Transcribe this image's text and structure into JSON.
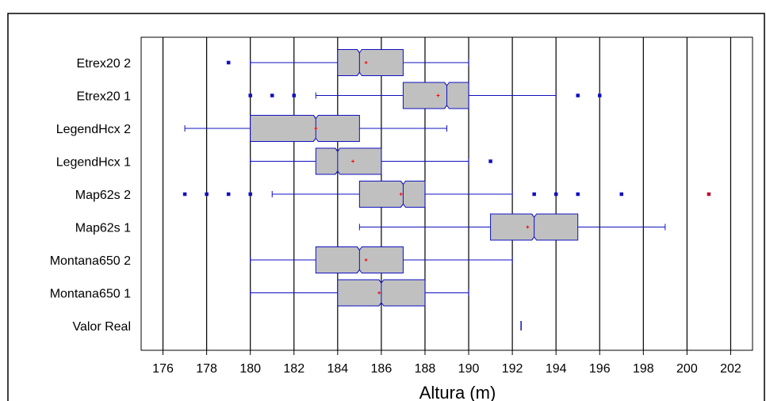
{
  "chart_data": {
    "type": "box",
    "orientation": "horizontal",
    "xlabel": "Altura (m)",
    "xlim": [
      175,
      203
    ],
    "xticks": [
      176,
      178,
      180,
      182,
      184,
      186,
      188,
      190,
      192,
      194,
      196,
      198,
      200,
      202
    ],
    "grid": "vertical",
    "colors": {
      "box_fill": "#c0c0c0",
      "whisker": "#1010c0",
      "mean": "#ff0000",
      "outlier": "#1010c0",
      "far_outlier": "#c01030"
    },
    "categories": [
      "Etrex20 2",
      "Etrex20 1",
      "LegendHcx 2",
      "LegendHcx 1",
      "Map62s 2",
      "Map62s 1",
      "Montana650 2",
      "Montana650 1",
      "Valor Real"
    ],
    "boxes": [
      {
        "name": "Etrex20 2",
        "whisker_low": 180,
        "q1": 184,
        "median": 185,
        "q3": 187,
        "whisker_high": 190,
        "mean": 185.3,
        "outliers": [
          179
        ]
      },
      {
        "name": "Etrex20 1",
        "whisker_low": 183,
        "q1": 187,
        "median": 189,
        "q3": 190,
        "whisker_high": 194,
        "mean": 188.6,
        "outliers": [
          180,
          181,
          182,
          195,
          196
        ]
      },
      {
        "name": "LegendHcx 2",
        "whisker_low": 177,
        "q1": 180,
        "median": 183,
        "q3": 185,
        "whisker_high": 189,
        "mean": 183,
        "outliers": []
      },
      {
        "name": "LegendHcx 1",
        "whisker_low": 180,
        "q1": 183,
        "median": 184,
        "q3": 186,
        "whisker_high": 190,
        "mean": 184.7,
        "outliers": [
          191
        ]
      },
      {
        "name": "Map62s 2",
        "whisker_low": 181,
        "q1": 185,
        "median": 187,
        "q3": 188,
        "whisker_high": 192,
        "mean": 186.9,
        "outliers": [
          177,
          178,
          179,
          180,
          193,
          194,
          195,
          197
        ],
        "far_outliers": [
          201
        ]
      },
      {
        "name": "Map62s 1",
        "whisker_low": 185,
        "q1": 191,
        "median": 193,
        "q3": 195,
        "whisker_high": 199,
        "mean": 192.7,
        "outliers": []
      },
      {
        "name": "Montana650 2",
        "whisker_low": 180,
        "q1": 183,
        "median": 185,
        "q3": 187,
        "whisker_high": 192,
        "mean": 185.3,
        "outliers": []
      },
      {
        "name": "Montana650 1",
        "whisker_low": 180,
        "q1": 184,
        "median": 186,
        "q3": 188,
        "whisker_high": 190,
        "mean": 185.9,
        "outliers": []
      },
      {
        "name": "Valor Real",
        "whisker_low": 192.4,
        "q1": 192.4,
        "median": 192.4,
        "q3": 192.4,
        "whisker_high": 192.4,
        "mean": 192.4,
        "outliers": []
      }
    ]
  }
}
